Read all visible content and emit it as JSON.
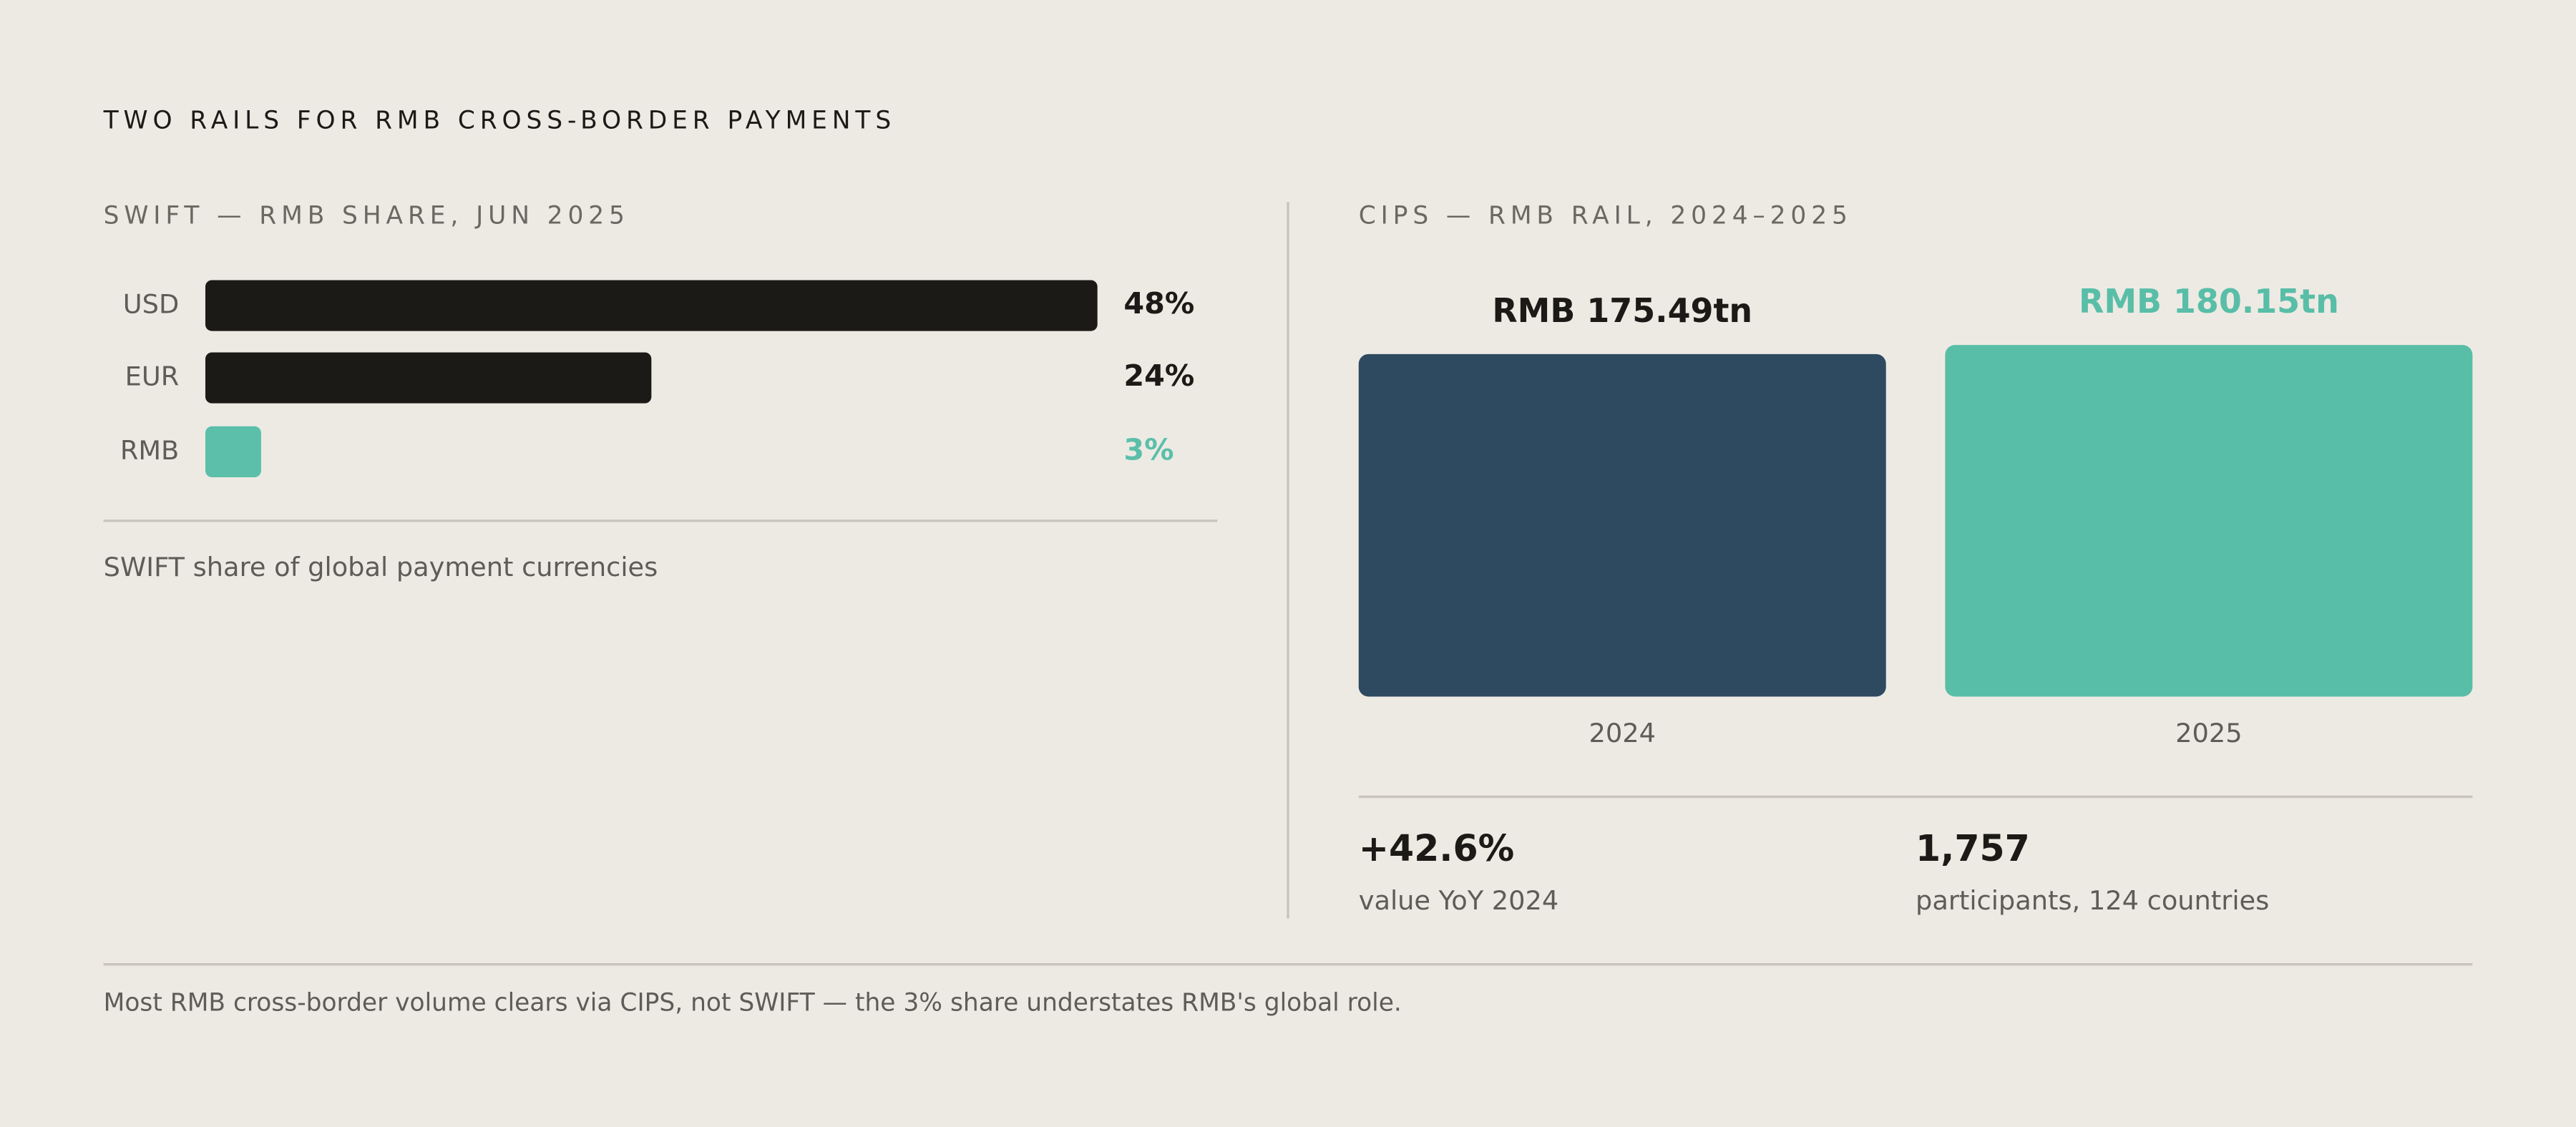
{
  "title": "TWO RAILS FOR RMB CROSS-BORDER PAYMENTS",
  "chart_data": [
    {
      "type": "hbar",
      "title": "SWIFT — RMB SHARE, JUN 2025",
      "categories": [
        "USD",
        "EUR",
        "RMB"
      ],
      "values": [
        48,
        24,
        3
      ],
      "value_labels": [
        "48%",
        "24%",
        "3%"
      ],
      "colors": [
        "#1c1a17",
        "#1c1a17",
        "#5bbfa9"
      ],
      "label_colors": [
        "#1c1a17",
        "#1c1a17",
        "#5bbfa9"
      ],
      "caption": "SWIFT share of global payment currencies"
    },
    {
      "type": "bar",
      "title": "CIPS — RMB RAIL, 2024–2025",
      "categories": [
        "2024",
        "2025"
      ],
      "values": [
        175.49,
        180.15
      ],
      "value_labels": [
        "RMB 175.49tn",
        "RMB 180.15tn"
      ],
      "colors": [
        "#2e4a60",
        "#58bea7"
      ],
      "label_colors": [
        "#1c1a17",
        "#58bea7"
      ]
    }
  ],
  "stats": [
    {
      "value": "+42.6%",
      "label": "value YoY 2024"
    },
    {
      "value": "1,757",
      "label": "participants, 124 countries"
    }
  ],
  "footnote": "Most RMB cross-border volume clears via CIPS, not SWIFT — the 3% share understates RMB's global role."
}
